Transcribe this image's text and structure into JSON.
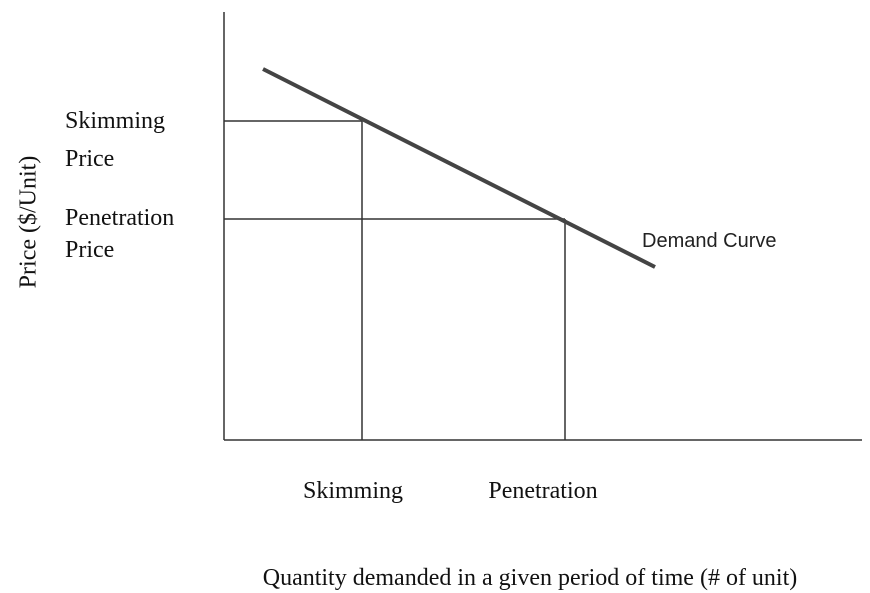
{
  "y_axis_label": "Price ($/Unit)",
  "price_levels": [
    {
      "lines": [
        "Skimming",
        "Price"
      ]
    },
    {
      "lines": [
        "Penetration",
        "Price"
      ]
    }
  ],
  "quantity_levels": [
    "Skimming",
    "Penetration"
  ],
  "x_axis_label": "Quantity demanded in a given period of time (# of unit)",
  "curve_label": "Demand Curve"
}
